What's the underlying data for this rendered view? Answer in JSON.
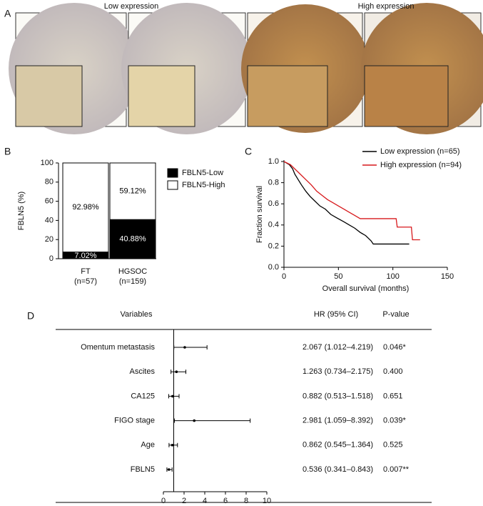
{
  "figure": {
    "panel_labels": [
      "A",
      "B",
      "C",
      "D"
    ],
    "image_captions": [
      "Low expression",
      "High expression"
    ]
  },
  "chart_data": [
    {
      "type": "bar",
      "stacked": true,
      "ylabel": "FBLN5 (%)",
      "categories": [
        "FT",
        "HGSOC"
      ],
      "category_notes": [
        "(n=57)",
        "(n=159)"
      ],
      "series": [
        {
          "name": "FBLN5-Low",
          "color": "#000000",
          "values": [
            7.02,
            40.88
          ],
          "value_labels": [
            "7.02%",
            "40.88%"
          ]
        },
        {
          "name": "FBLN5-High",
          "color": "#ffffff",
          "values": [
            92.98,
            59.12
          ],
          "value_labels": [
            "92.98%",
            "59.12%"
          ]
        }
      ],
      "ylim": [
        0,
        100
      ],
      "yticks": [
        0,
        20,
        40,
        60,
        80,
        100
      ]
    },
    {
      "type": "line",
      "xlabel": "Overall survival (months)",
      "ylabel": "Fraction survival",
      "xlim": [
        0,
        150
      ],
      "xticks": [
        0,
        50,
        100,
        150
      ],
      "ylim": [
        0,
        1
      ],
      "yticks": [
        {
          "value": 0,
          "label": "0.0"
        },
        {
          "value": 0.2,
          "label": "0.2"
        },
        {
          "value": 0.4,
          "label": "0.4"
        },
        {
          "value": 0.6,
          "label": "0.6"
        },
        {
          "value": 0.8,
          "label": "0.8"
        },
        {
          "value": 1,
          "label": "1.0"
        }
      ],
      "legend": "top-right",
      "series": [
        {
          "name": "Low expression (n=65)",
          "color": "#000000",
          "x": [
            0,
            5,
            8,
            10,
            13,
            16,
            20,
            24,
            28,
            33,
            38,
            43,
            48,
            55,
            60,
            65,
            70,
            75,
            80,
            82,
            115
          ],
          "values": [
            1.0,
            0.97,
            0.93,
            0.88,
            0.83,
            0.78,
            0.72,
            0.67,
            0.63,
            0.58,
            0.55,
            0.5,
            0.47,
            0.43,
            0.4,
            0.37,
            0.33,
            0.3,
            0.25,
            0.22,
            0.22
          ]
        },
        {
          "name": "High expression (n=94)",
          "color": "#d7191c",
          "x": [
            0,
            6,
            10,
            15,
            20,
            25,
            30,
            35,
            40,
            45,
            50,
            55,
            60,
            65,
            70,
            103,
            104,
            117,
            118,
            125
          ],
          "values": [
            1.0,
            0.97,
            0.93,
            0.88,
            0.83,
            0.78,
            0.72,
            0.68,
            0.64,
            0.61,
            0.58,
            0.55,
            0.52,
            0.49,
            0.46,
            0.46,
            0.38,
            0.38,
            0.26,
            0.26
          ]
        }
      ]
    },
    {
      "type": "forest",
      "columns": [
        "Variables",
        "HR (95% CI)",
        "P-value"
      ],
      "categories": [
        "Omentum metastasis",
        "Ascites",
        "CA125",
        "FIGO stage",
        "Age",
        "FBLN5"
      ],
      "values": [
        2.067,
        1.263,
        0.882,
        2.981,
        0.862,
        0.536
      ],
      "lower": [
        1.012,
        0.734,
        0.513,
        1.059,
        0.545,
        0.341
      ],
      "upper": [
        4.219,
        2.175,
        1.518,
        8.392,
        1.364,
        0.843
      ],
      "ci_labels": [
        "2.067 (1.012–4.219)",
        "1.263 (0.734–2.175)",
        "0.882 (0.513–1.518)",
        "2.981 (1.059–8.392)",
        "0.862 (0.545–1.364)",
        "0.536 (0.341–0.843)"
      ],
      "p_values": [
        "0.046*",
        "0.400",
        "0.651",
        "0.039*",
        "0.525",
        "0.007**"
      ],
      "reference": 1,
      "xlim": [
        0,
        10
      ],
      "xticks": [
        0,
        2,
        4,
        6,
        8,
        10
      ]
    }
  ]
}
